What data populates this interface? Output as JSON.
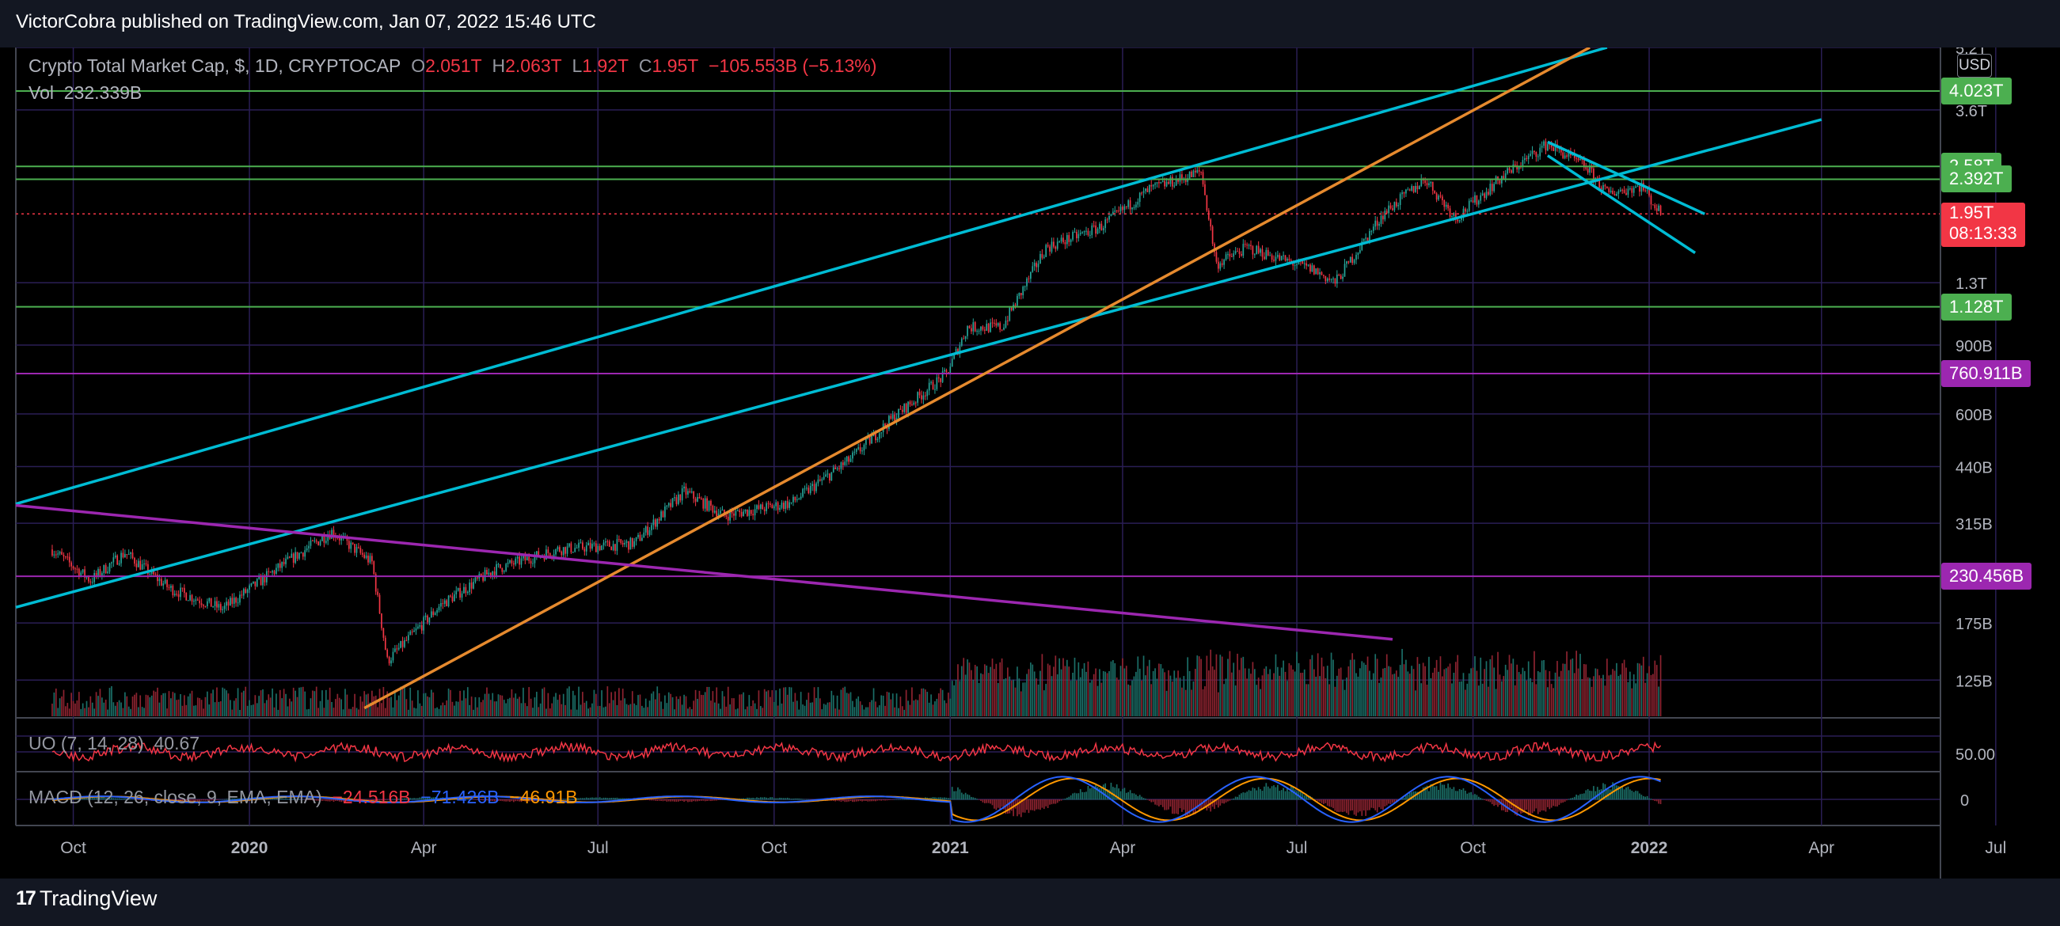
{
  "header": {
    "published": "VictorCobra published on TradingView.com, Jan 07, 2022 15:46 UTC"
  },
  "footer": {
    "brand": "TradingView"
  },
  "legend": {
    "symbol": "Crypto Total Market Cap, $, 1D, CRYPTOCAP",
    "open_label": "O",
    "open": "2.051T",
    "high_label": "H",
    "high": "2.063T",
    "low_label": "L",
    "low": "1.92T",
    "close_label": "C",
    "close": "1.95T",
    "change": "−105.553B (−5.13%)",
    "vol_label": "Vol",
    "vol": "232.339B"
  },
  "indicators": {
    "uo_label": "UO (7, 14, 28)",
    "uo_value": "40.67",
    "macd_label": "MACD (12, 26, close, 9, EMA, EMA)",
    "macd_hist": "−24.516B",
    "macd_line": "−71.426B",
    "macd_signal": "−46.91B",
    "uo_axis": "50.00",
    "macd_axis": "0"
  },
  "price_axis": {
    "currency": "USD",
    "ticks": [
      "5.2T",
      "3.6T",
      "1.3T",
      "900B",
      "600B",
      "440B",
      "315B",
      "175B",
      "125B"
    ]
  },
  "price_tags": [
    {
      "label": "4.023T",
      "color": "#4caf50"
    },
    {
      "label": "2.58T",
      "color": "#4caf50"
    },
    {
      "label": "2.392T",
      "color": "#4caf50"
    },
    {
      "label": "1.95T",
      "sub": "08:13:33",
      "color": "#f23645"
    },
    {
      "label": "1.128T",
      "color": "#4caf50"
    },
    {
      "label": "760.911B",
      "color": "#9c27b0"
    },
    {
      "label": "230.456B",
      "color": "#9c27b0"
    }
  ],
  "time_axis": [
    "Oct",
    "2020",
    "Apr",
    "Jul",
    "Oct",
    "2021",
    "Apr",
    "Jul",
    "Oct",
    "2022",
    "Apr",
    "Jul"
  ],
  "chart_data": {
    "type": "candlestick",
    "title": "Crypto Total Market Cap, $, 1D, CRYPTOCAP",
    "scale": "log",
    "x_range": [
      "2019-09",
      "2022-07"
    ],
    "y_range": [
      100,
      5200
    ],
    "y_unit": "B USD",
    "close_series": [
      {
        "x": "2019-09-20",
        "y": 270
      },
      {
        "x": "2019-10-10",
        "y": 225
      },
      {
        "x": "2019-10-28",
        "y": 265
      },
      {
        "x": "2019-11-20",
        "y": 215
      },
      {
        "x": "2019-12-18",
        "y": 190
      },
      {
        "x": "2020-01-15",
        "y": 240
      },
      {
        "x": "2020-02-13",
        "y": 300
      },
      {
        "x": "2020-03-05",
        "y": 250
      },
      {
        "x": "2020-03-13",
        "y": 140
      },
      {
        "x": "2020-04-10",
        "y": 195
      },
      {
        "x": "2020-05-08",
        "y": 240
      },
      {
        "x": "2020-06-10",
        "y": 270
      },
      {
        "x": "2020-07-20",
        "y": 280
      },
      {
        "x": "2020-08-15",
        "y": 380
      },
      {
        "x": "2020-09-05",
        "y": 330
      },
      {
        "x": "2020-10-10",
        "y": 355
      },
      {
        "x": "2020-11-10",
        "y": 460
      },
      {
        "x": "2020-12-01",
        "y": 580
      },
      {
        "x": "2020-12-30",
        "y": 760
      },
      {
        "x": "2021-01-10",
        "y": 1000
      },
      {
        "x": "2021-01-28",
        "y": 1000
      },
      {
        "x": "2021-02-20",
        "y": 1600
      },
      {
        "x": "2021-03-20",
        "y": 1800
      },
      {
        "x": "2021-04-15",
        "y": 2250
      },
      {
        "x": "2021-05-12",
        "y": 2500
      },
      {
        "x": "2021-05-20",
        "y": 1450
      },
      {
        "x": "2021-06-05",
        "y": 1600
      },
      {
        "x": "2021-07-10",
        "y": 1400
      },
      {
        "x": "2021-07-21",
        "y": 1300
      },
      {
        "x": "2021-08-15",
        "y": 1950
      },
      {
        "x": "2021-09-06",
        "y": 2400
      },
      {
        "x": "2021-09-22",
        "y": 1900
      },
      {
        "x": "2021-10-15",
        "y": 2400
      },
      {
        "x": "2021-11-09",
        "y": 2950
      },
      {
        "x": "2021-11-30",
        "y": 2550
      },
      {
        "x": "2021-12-10",
        "y": 2200
      },
      {
        "x": "2021-12-28",
        "y": 2300
      },
      {
        "x": "2022-01-07",
        "y": 1950
      }
    ],
    "horizontal_levels": [
      {
        "value": 4023,
        "color": "#4caf50"
      },
      {
        "value": 2580,
        "color": "#4caf50"
      },
      {
        "value": 2392,
        "color": "#4caf50"
      },
      {
        "value": 1128,
        "color": "#4caf50"
      },
      {
        "value": 760.911,
        "color": "#9c27b0"
      },
      {
        "value": 230.456,
        "color": "#9c27b0"
      }
    ],
    "trendlines": [
      {
        "color": "#00bcd4",
        "from": {
          "x": "2019-09-01",
          "y": 353
        },
        "to": {
          "x": "2021-12-10",
          "y": 5200
        }
      },
      {
        "color": "#00bcd4",
        "from": {
          "x": "2019-09-01",
          "y": 192
        },
        "to": {
          "x": "2022-04-01",
          "y": 3400
        }
      },
      {
        "color": "#e68a2e",
        "from": {
          "x": "2020-03-01",
          "y": 106
        },
        "to": {
          "x": "2021-12-01",
          "y": 5200
        }
      },
      {
        "color": "#9c27b0",
        "from": {
          "x": "2019-09-01",
          "y": 350
        },
        "to": {
          "x": "2021-08-20",
          "y": 159
        }
      },
      {
        "color": "#00bcd4",
        "from": {
          "x": "2021-11-09",
          "y": 2980
        },
        "to": {
          "x": "2022-01-30",
          "y": 1950
        }
      },
      {
        "color": "#00bcd4",
        "from": {
          "x": "2021-11-09",
          "y": 2750
        },
        "to": {
          "x": "2022-01-25",
          "y": 1550
        }
      }
    ]
  },
  "colors": {
    "up": "#26a69a",
    "down": "#f23645",
    "grid": "#2a1e55",
    "uo": "#f23645",
    "macd": "#2962ff",
    "signal": "#ff9800"
  }
}
